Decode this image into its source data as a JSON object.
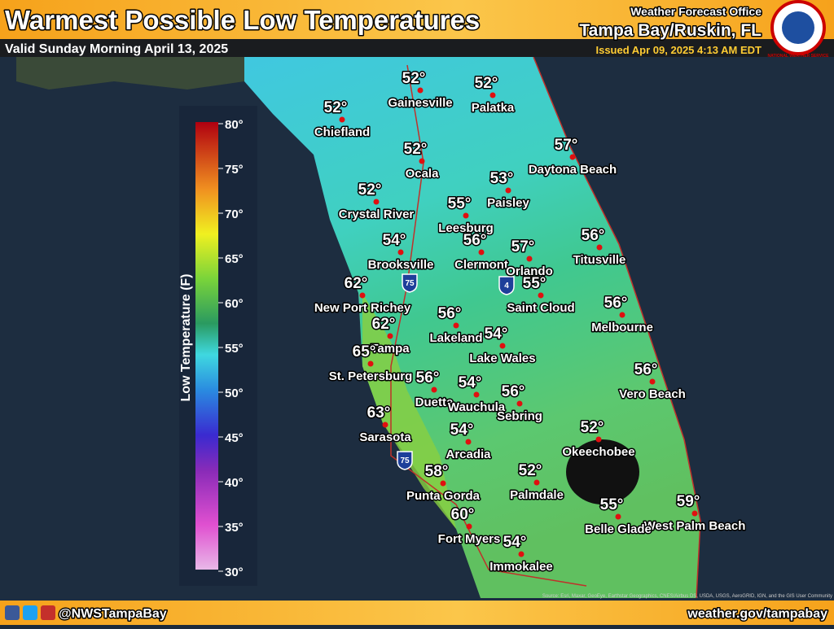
{
  "header": {
    "title": "Warmest Possible Low Temperatures",
    "valid": "Valid Sunday Morning April 13, 2025",
    "office_line": "Weather Forecast Office",
    "office": "Tampa Bay/Ruskin, FL",
    "issued": "Issued Apr 09, 2025 4:13 AM EDT",
    "logo_text": "NATIONAL WEATHER SERVICE"
  },
  "legend": {
    "label": "Low Temperature (F)",
    "ticks": [
      "80°",
      "75°",
      "70°",
      "65°",
      "60°",
      "55°",
      "50°",
      "45°",
      "40°",
      "35°",
      "30°"
    ]
  },
  "cities": [
    {
      "name": "Gainesville",
      "temp": "52°"
    },
    {
      "name": "Palatka",
      "temp": "52°"
    },
    {
      "name": "Chiefland",
      "temp": "52°"
    },
    {
      "name": "Daytona Beach",
      "temp": "57°"
    },
    {
      "name": "Ocala",
      "temp": "52°"
    },
    {
      "name": "Paisley",
      "temp": "53°"
    },
    {
      "name": "Crystal River",
      "temp": "52°"
    },
    {
      "name": "Leesburg",
      "temp": "55°"
    },
    {
      "name": "Titusville",
      "temp": "56°"
    },
    {
      "name": "Brooksville",
      "temp": "54°"
    },
    {
      "name": "Clermont",
      "temp": "56°"
    },
    {
      "name": "Orlando",
      "temp": "57°"
    },
    {
      "name": "New Port Richey",
      "temp": "62°"
    },
    {
      "name": "Saint Cloud",
      "temp": "55°"
    },
    {
      "name": "Melbourne",
      "temp": "56°"
    },
    {
      "name": "Lakeland",
      "temp": "56°"
    },
    {
      "name": "Tampa",
      "temp": "62°"
    },
    {
      "name": "Lake Wales",
      "temp": "54°"
    },
    {
      "name": "St. Petersburg",
      "temp": "65°"
    },
    {
      "name": "Vero Beach",
      "temp": "56°"
    },
    {
      "name": "Duette",
      "temp": "56°"
    },
    {
      "name": "Wauchula",
      "temp": "54°"
    },
    {
      "name": "Sebring",
      "temp": "56°"
    },
    {
      "name": "Sarasota",
      "temp": "63°"
    },
    {
      "name": "Okeechobee",
      "temp": "52°"
    },
    {
      "name": "Arcadia",
      "temp": "54°"
    },
    {
      "name": "Palmdale",
      "temp": "52°"
    },
    {
      "name": "Punta Gorda",
      "temp": "58°"
    },
    {
      "name": "West Palm Beach",
      "temp": "59°"
    },
    {
      "name": "Belle Glade",
      "temp": "55°"
    },
    {
      "name": "Fort Myers",
      "temp": "60°"
    },
    {
      "name": "Immokalee",
      "temp": "54°"
    }
  ],
  "shields": [
    "75",
    "4",
    "75"
  ],
  "attribution": "Source: Esri, Maxar, GeoEye, Earthstar Geographics, CNES/Airbus DS, USDA, USGS, AeroGRID, IGN, and the GIS User Community",
  "footer": {
    "handle": "@NWSTampaBay",
    "url": "weather.gov/tampabay"
  }
}
